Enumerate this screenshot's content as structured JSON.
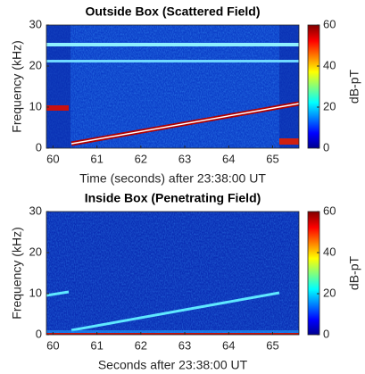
{
  "chart_data": [
    {
      "type": "spectrogram",
      "title": "Outside Box (Scattered Field)",
      "xlabel": "Time (seconds) after 23:38:00 UT",
      "ylabel": "Frequency (kHz)",
      "xlim": [
        59.85,
        65.6
      ],
      "ylim": [
        0,
        30
      ],
      "xticks": [
        60,
        61,
        62,
        63,
        64,
        65
      ],
      "yticks": [
        0,
        10,
        20,
        30
      ],
      "colorbar": {
        "label": "dB-pT",
        "lim": [
          0,
          60
        ],
        "ticks": [
          0,
          20,
          40,
          60
        ]
      }
    },
    {
      "type": "spectrogram",
      "title": "Inside Box (Penetrating Field)",
      "xlabel": "Seconds after 23:38:00 UT",
      "ylabel": "Frequency (kHz)",
      "xlim": [
        59.85,
        65.6
      ],
      "ylim": [
        0,
        30
      ],
      "xticks": [
        60,
        61,
        62,
        63,
        64,
        65
      ],
      "yticks": [
        0,
        10,
        20,
        30
      ],
      "colorbar": {
        "label": "dB-pT",
        "lim": [
          0,
          60
        ],
        "ticks": [
          0,
          20,
          40,
          60
        ]
      }
    }
  ]
}
